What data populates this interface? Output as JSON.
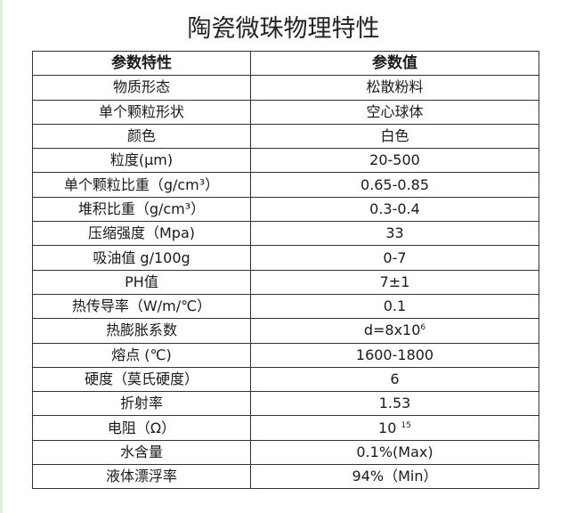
{
  "title": "陶瓷微珠物理特性",
  "table": {
    "headers": [
      "参数特性",
      "参数值"
    ],
    "rows": [
      {
        "param": "物质形态",
        "value": "松散粉料"
      },
      {
        "param": "单个颗粒形状",
        "value": "空心球体"
      },
      {
        "param": "颜色",
        "value": "白色"
      },
      {
        "param": "粒度(μm)",
        "value": "20-500"
      },
      {
        "param": "单个颗粒比重（g/cm³）",
        "value": "0.65-0.85"
      },
      {
        "param": "堆积比重（g/cm³）",
        "value": "0.3-0.4"
      },
      {
        "param": "压缩强度（Mpa)",
        "value": "33"
      },
      {
        "param": "吸油值 g/100g",
        "value": "0-7"
      },
      {
        "param": "PH值",
        "value": "7±1"
      },
      {
        "param": "热传导率（W/m/℃）",
        "value": "0.1"
      },
      {
        "param": "热膨胀系数",
        "value": "d=8x10",
        "sup": "6"
      },
      {
        "param": "熔点 (℃)",
        "value": "1600-1800"
      },
      {
        "param": "硬度（莫氏硬度）",
        "value": "6"
      },
      {
        "param": "折射率",
        "value": "1.53"
      },
      {
        "param": "电阻（Ω）",
        "value": "10 ",
        "sup": "15"
      },
      {
        "param": "水含量",
        "value": "0.1%(Max)"
      },
      {
        "param": "液体漂浮率",
        "value": "94%（Min）"
      }
    ]
  }
}
